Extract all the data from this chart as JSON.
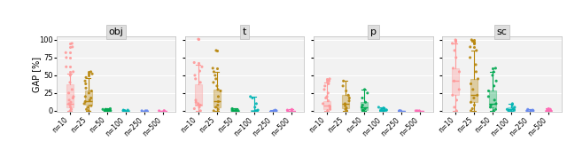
{
  "panels": [
    "obj",
    "t",
    "p",
    "sc"
  ],
  "n_labels": [
    "n=10",
    "n=25",
    "n=50",
    "n=100",
    "n=250",
    "n=500"
  ],
  "colors": [
    "#FF9999",
    "#B8860B",
    "#00A850",
    "#00B4B4",
    "#6688EE",
    "#FF69B4"
  ],
  "ylim": [
    -2,
    105
  ],
  "yticks": [
    0,
    25,
    50,
    75,
    100
  ],
  "ylabel": "GAP [%]",
  "box_data": {
    "obj": [
      {
        "q1": 5,
        "median": 10,
        "q3": 37,
        "whislo": 0,
        "whishi": 52,
        "fliers": [
          55,
          62,
          75,
          82,
          90,
          95
        ]
      },
      {
        "q1": 8,
        "median": 14,
        "q3": 28,
        "whislo": 0,
        "whishi": 46,
        "fliers": [
          50,
          52,
          55
        ]
      },
      {
        "q1": 0,
        "median": 1,
        "q3": 2,
        "whislo": 0,
        "whishi": 3,
        "fliers": []
      },
      {
        "q1": 0,
        "median": 0,
        "q3": 1,
        "whislo": 0,
        "whishi": 1,
        "fliers": []
      },
      {
        "q1": 0,
        "median": 0,
        "q3": 0,
        "whislo": 0,
        "whishi": 0,
        "fliers": []
      },
      {
        "q1": 0,
        "median": 0,
        "q3": 0,
        "whislo": 0,
        "whishi": 0,
        "fliers": []
      }
    ],
    "t": [
      {
        "q1": 7,
        "median": 9,
        "q3": 37,
        "whislo": 0,
        "whishi": 65,
        "fliers": [
          68,
          101
        ]
      },
      {
        "q1": 5,
        "median": 13,
        "q3": 30,
        "whislo": 0,
        "whishi": 55,
        "fliers": [
          60,
          85
        ]
      },
      {
        "q1": 0,
        "median": 0,
        "q3": 1,
        "whislo": 0,
        "whishi": 3,
        "fliers": []
      },
      {
        "q1": 0,
        "median": 0,
        "q3": 1,
        "whislo": 0,
        "whishi": 20,
        "fliers": []
      },
      {
        "q1": 0,
        "median": 0,
        "q3": 0,
        "whislo": 0,
        "whishi": 1,
        "fliers": []
      },
      {
        "q1": 0,
        "median": 0,
        "q3": 0,
        "whislo": 0,
        "whishi": 2,
        "fliers": []
      }
    ],
    "p": [
      {
        "q1": 2,
        "median": 7,
        "q3": 14,
        "whislo": 0,
        "whishi": 40,
        "fliers": [
          42,
          45
        ]
      },
      {
        "q1": 4,
        "median": 10,
        "q3": 22,
        "whislo": 0,
        "whishi": 42,
        "fliers": []
      },
      {
        "q1": 1,
        "median": 5,
        "q3": 12,
        "whislo": 0,
        "whishi": 30,
        "fliers": []
      },
      {
        "q1": 0,
        "median": 1,
        "q3": 3,
        "whislo": 0,
        "whishi": 5,
        "fliers": []
      },
      {
        "q1": 0,
        "median": 0,
        "q3": 0,
        "whislo": 0,
        "whishi": 0,
        "fliers": []
      },
      {
        "q1": 0,
        "median": 0,
        "q3": 0,
        "whislo": 0,
        "whishi": 0,
        "fliers": []
      }
    ],
    "sc": [
      {
        "q1": 22,
        "median": 42,
        "q3": 60,
        "whislo": 0,
        "whishi": 95,
        "fliers": [
          98,
          100
        ]
      },
      {
        "q1": 12,
        "median": 22,
        "q3": 45,
        "whislo": 0,
        "whishi": 85,
        "fliers": [
          90,
          95,
          98,
          100
        ]
      },
      {
        "q1": 5,
        "median": 10,
        "q3": 28,
        "whislo": 0,
        "whishi": 55,
        "fliers": [
          60
        ]
      },
      {
        "q1": 0,
        "median": 2,
        "q3": 5,
        "whislo": 0,
        "whishi": 10,
        "fliers": []
      },
      {
        "q1": 0,
        "median": 0,
        "q3": 1,
        "whislo": 0,
        "whishi": 2,
        "fliers": []
      },
      {
        "q1": 0,
        "median": 0,
        "q3": 1,
        "whislo": 0,
        "whishi": 3,
        "fliers": []
      }
    ]
  },
  "scatter_data": {
    "obj": [
      [
        0,
        2,
        5,
        8,
        10,
        12,
        15,
        18,
        20,
        25,
        30,
        40,
        50,
        55,
        62,
        75,
        82,
        90,
        95
      ],
      [
        0,
        2,
        5,
        7,
        10,
        13,
        15,
        18,
        20,
        25,
        28,
        32,
        38,
        42,
        47,
        52,
        55
      ],
      [
        0,
        0,
        0,
        1,
        1,
        2,
        2,
        3
      ],
      [
        0,
        0,
        0,
        0,
        1,
        1
      ],
      [
        0,
        0,
        0
      ],
      [
        0,
        0,
        0
      ]
    ],
    "t": [
      [
        0,
        3,
        5,
        8,
        10,
        12,
        15,
        40,
        45,
        50,
        56,
        62,
        68,
        101
      ],
      [
        0,
        2,
        5,
        8,
        13,
        20,
        28,
        30,
        35,
        40,
        45,
        50,
        55,
        60,
        85
      ],
      [
        0,
        0,
        1,
        1,
        2,
        3
      ],
      [
        0,
        0,
        1,
        5,
        10,
        18,
        20
      ],
      [
        0,
        0,
        0,
        1
      ],
      [
        0,
        0,
        1,
        2
      ]
    ],
    "p": [
      [
        0,
        2,
        5,
        7,
        10,
        14,
        18,
        20,
        25,
        30,
        35,
        38,
        42,
        45
      ],
      [
        0,
        2,
        4,
        7,
        10,
        14,
        18,
        22,
        28,
        35,
        42
      ],
      [
        0,
        1,
        3,
        5,
        8,
        12,
        18,
        25,
        30
      ],
      [
        0,
        0,
        1,
        2,
        3,
        4,
        5
      ],
      [
        0,
        0,
        0
      ],
      [
        0,
        0,
        0
      ]
    ],
    "sc": [
      [
        0,
        5,
        15,
        22,
        30,
        42,
        55,
        60,
        75,
        85,
        95,
        98,
        100
      ],
      [
        0,
        3,
        8,
        12,
        18,
        22,
        30,
        38,
        45,
        55,
        65,
        75,
        85,
        90,
        95,
        98,
        100
      ],
      [
        0,
        2,
        5,
        8,
        10,
        15,
        20,
        28,
        35,
        42,
        50,
        55,
        60
      ],
      [
        0,
        0,
        1,
        2,
        3,
        5,
        7,
        10
      ],
      [
        0,
        0,
        0,
        1,
        2
      ],
      [
        0,
        0,
        1,
        2,
        3
      ]
    ]
  },
  "header_bg": "#DEDEDE",
  "plot_bg": "#F2F2F2",
  "grid_color": "#FFFFFF",
  "border_color": "#BBBBBB"
}
